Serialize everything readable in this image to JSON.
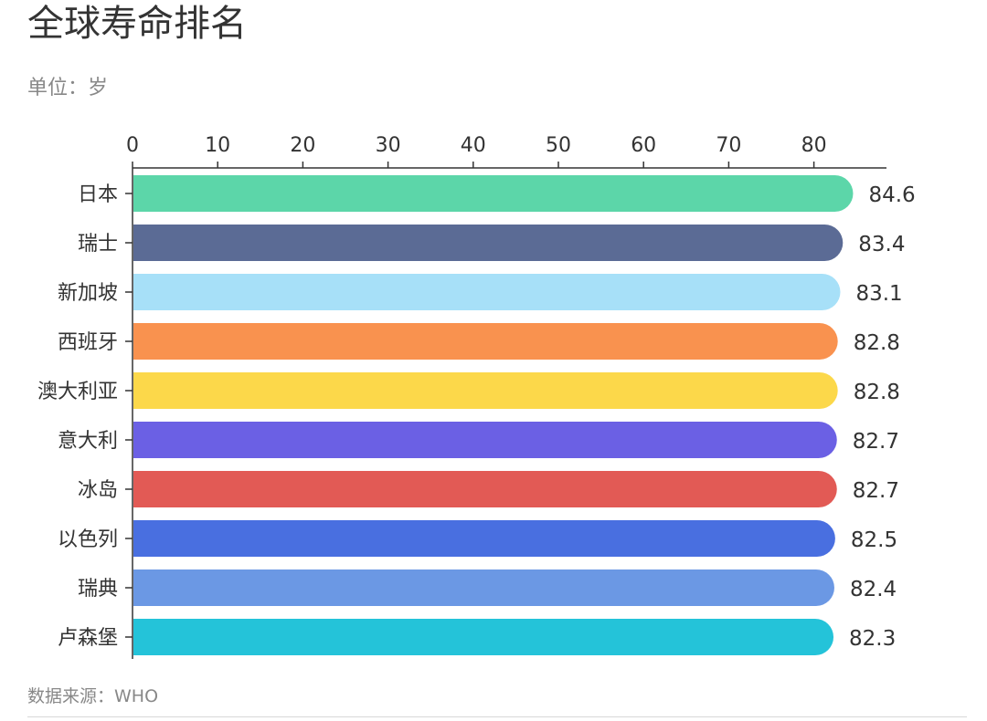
{
  "header": {
    "title": "全球寿命排名",
    "unit": "单位：岁"
  },
  "footer": {
    "source": "数据来源：WHO"
  },
  "chart_data": {
    "type": "bar",
    "orientation": "horizontal",
    "title": "全球寿命排名",
    "xlim": [
      0,
      88
    ],
    "x_ticks": [
      0,
      10,
      20,
      30,
      40,
      50,
      60,
      70,
      80
    ],
    "x_axis_position": "top",
    "grid": false,
    "categories": [
      "日本",
      "瑞士",
      "新加坡",
      "西班牙",
      "澳大利亚",
      "意大利",
      "冰岛",
      "以色列",
      "瑞典",
      "卢森堡"
    ],
    "values": [
      84.6,
      83.4,
      83.1,
      82.8,
      82.8,
      82.7,
      82.7,
      82.5,
      82.4,
      82.3
    ],
    "colors": [
      "#5cd6a9",
      "#5b6b95",
      "#a7e0f8",
      "#f9924f",
      "#fcd84a",
      "#6b60e4",
      "#e25a55",
      "#496fe0",
      "#6b98e4",
      "#24c3d9"
    ]
  }
}
